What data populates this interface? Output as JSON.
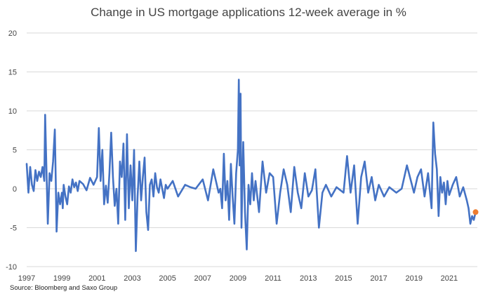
{
  "chart_data": {
    "type": "line",
    "title": "Change in US mortgage applications 12-week average in %",
    "source": "Source: Bloomberg and Saxo Group",
    "xlabel": "",
    "ylabel": "",
    "xlim": [
      1997,
      2022.6
    ],
    "ylim": [
      -10,
      20
    ],
    "grid": true,
    "legend": "none",
    "x_ticks": [
      "1997",
      "1999",
      "2001",
      "2003",
      "2005",
      "2007",
      "2009",
      "2011",
      "2013",
      "2015",
      "2017",
      "2019",
      "2021"
    ],
    "y_ticks": [
      "20",
      "15",
      "10",
      "5",
      "0",
      "-5",
      "-10"
    ],
    "line_color": "#4472C4",
    "marker_color": "#ED7D31",
    "series": [
      {
        "x": [
          1997.0,
          1997.1,
          1997.2,
          1997.3,
          1997.4,
          1997.5,
          1997.6,
          1997.7,
          1997.8,
          1997.9,
          1998.0,
          1998.05,
          1998.1,
          1998.2,
          1998.3,
          1998.4,
          1998.5,
          1998.6,
          1998.65,
          1998.7,
          1998.8,
          1998.9,
          1999.0,
          1999.05,
          1999.1,
          1999.2,
          1999.3,
          1999.4,
          1999.5,
          1999.6,
          1999.7,
          1999.8,
          1999.9,
          2000.0,
          2000.2,
          2000.4,
          2000.6,
          2000.8,
          2001.0,
          2001.1,
          2001.2,
          2001.3,
          2001.4,
          2001.5,
          2001.6,
          2001.7,
          2001.8,
          2001.9,
          2002.0,
          2002.1,
          2002.2,
          2002.3,
          2002.4,
          2002.5,
          2002.6,
          2002.7,
          2002.8,
          2002.9,
          2003.0,
          2003.1,
          2003.2,
          2003.3,
          2003.4,
          2003.5,
          2003.6,
          2003.7,
          2003.8,
          2003.9,
          2004.0,
          2004.1,
          2004.2,
          2004.3,
          2004.4,
          2004.5,
          2004.6,
          2004.7,
          2004.8,
          2004.9,
          2005.0,
          2005.3,
          2005.6,
          2006.0,
          2006.3,
          2006.6,
          2007.0,
          2007.3,
          2007.6,
          2007.9,
          2008.0,
          2008.1,
          2008.2,
          2008.3,
          2008.4,
          2008.5,
          2008.6,
          2008.7,
          2008.8,
          2008.9,
          2009.0,
          2009.05,
          2009.1,
          2009.15,
          2009.2,
          2009.3,
          2009.4,
          2009.5,
          2009.6,
          2009.7,
          2009.8,
          2009.9,
          2010.0,
          2010.2,
          2010.4,
          2010.6,
          2010.8,
          2011.0,
          2011.2,
          2011.4,
          2011.6,
          2011.8,
          2012.0,
          2012.2,
          2012.4,
          2012.6,
          2012.8,
          2013.0,
          2013.2,
          2013.4,
          2013.6,
          2013.8,
          2014.0,
          2014.3,
          2014.6,
          2015.0,
          2015.2,
          2015.4,
          2015.6,
          2015.8,
          2016.0,
          2016.2,
          2016.4,
          2016.6,
          2016.8,
          2017.0,
          2017.3,
          2017.6,
          2018.0,
          2018.3,
          2018.6,
          2019.0,
          2019.2,
          2019.4,
          2019.6,
          2019.8,
          2020.0,
          2020.1,
          2020.2,
          2020.3,
          2020.4,
          2020.5,
          2020.6,
          2020.7,
          2020.8,
          2020.9,
          2021.0,
          2021.2,
          2021.4,
          2021.6,
          2021.8,
          2022.0,
          2022.1,
          2022.2,
          2022.3,
          2022.4,
          2022.5
        ],
        "y": [
          3.2,
          -0.5,
          2.8,
          0.5,
          -0.3,
          2.4,
          1.0,
          2.2,
          1.5,
          2.8,
          1.0,
          9.5,
          4.6,
          -4.5,
          2.0,
          1.0,
          3.5,
          7.6,
          1.2,
          -5.5,
          -0.5,
          -2.0,
          -0.5,
          -2.5,
          0.5,
          -1.0,
          -2.0,
          0.3,
          -0.5,
          1.2,
          0.2,
          0.8,
          -0.3,
          1.0,
          0.6,
          -0.2,
          1.4,
          0.5,
          1.5,
          7.8,
          1.0,
          5.0,
          -2.0,
          0.4,
          -1.8,
          2.0,
          7.2,
          1.5,
          -2.2,
          0.0,
          -4.5,
          3.5,
          1.5,
          5.8,
          -4.0,
          7.0,
          -2.5,
          3.0,
          -1.5,
          5.0,
          -8.0,
          -1.0,
          3.5,
          -1.5,
          1.5,
          4.0,
          -3.0,
          -5.3,
          0.5,
          1.2,
          -1.0,
          2.0,
          0.2,
          -0.5,
          1.2,
          0.0,
          -1.2,
          0.5,
          0.0,
          1.0,
          -1.0,
          0.5,
          0.2,
          0.0,
          1.2,
          -1.5,
          2.5,
          -0.5,
          0.0,
          -2.5,
          4.5,
          -1.5,
          1.0,
          -4.0,
          3.2,
          -1.0,
          -4.5,
          2.0,
          5.0,
          14.0,
          3.0,
          12.2,
          -5.0,
          6.0,
          -3.0,
          -7.8,
          0.5,
          -2.0,
          2.0,
          -1.5,
          1.0,
          -3.0,
          3.5,
          -0.5,
          2.0,
          1.5,
          -4.5,
          -0.5,
          2.5,
          0.5,
          -3.0,
          2.8,
          -0.5,
          -2.5,
          2.0,
          -1.0,
          -0.2,
          2.5,
          -5.0,
          -0.5,
          0.5,
          -1.0,
          0.2,
          -0.5,
          4.2,
          -0.5,
          3.0,
          -4.5,
          1.5,
          3.5,
          -0.5,
          1.5,
          -1.5,
          0.5,
          -1.0,
          0.2,
          -0.5,
          0.0,
          3.0,
          -0.5,
          1.5,
          2.5,
          -1.0,
          2.0,
          -2.5,
          8.5,
          4.5,
          2.5,
          -3.5,
          1.5,
          -0.5,
          0.8,
          -2.0,
          1.0,
          -0.8,
          0.5,
          1.5,
          -1.0,
          0.2,
          -1.5,
          -2.5,
          -4.5,
          -3.5,
          -4.0,
          -3.0
        ]
      }
    ],
    "last_point": {
      "x": 2022.5,
      "y": -3.0
    }
  }
}
